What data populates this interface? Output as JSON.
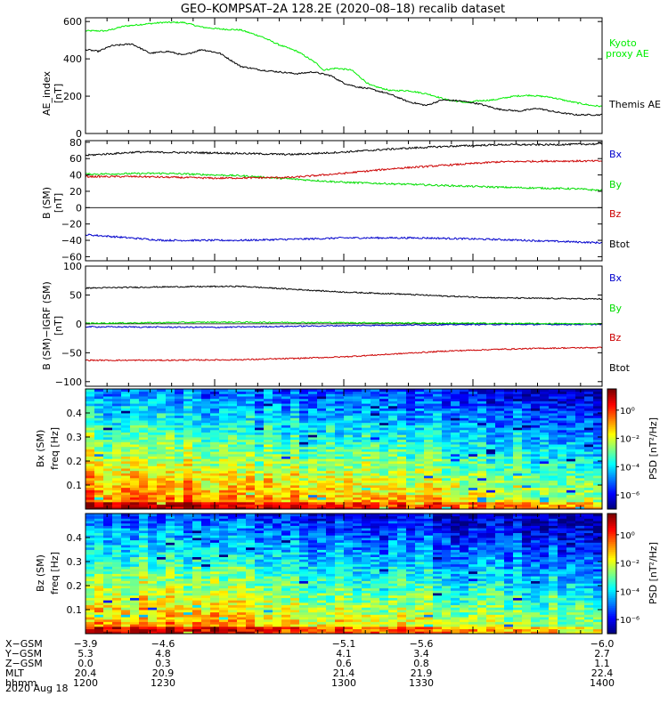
{
  "title": "GEO–KOMPSAT–2A 128.2E (2020–08–18) recalib dataset",
  "chart_data": [
    {
      "type": "line",
      "panel": "ae",
      "ylabel": "AE_index",
      "yunit": "[nT]",
      "ylim": [
        0,
        620
      ],
      "yticks": [
        "0",
        "200",
        "400",
        "600"
      ],
      "ytick_values": [
        0,
        200,
        400,
        600
      ],
      "xlim": [
        1200,
        1400
      ],
      "series": [
        {
          "name": "Kyoto proxy AE",
          "legend": [
            "Kyoto",
            "proxy AE"
          ],
          "color": "#00ee00",
          "x": [
            1200,
            1208,
            1215,
            1222,
            1230,
            1238,
            1245,
            1252,
            1260,
            1268,
            1275,
            1282,
            1285,
            1290,
            1292,
            1297,
            1303,
            1310,
            1318,
            1325,
            1333,
            1340,
            1348,
            1352,
            1358,
            1366,
            1372,
            1380,
            1388,
            1396,
            1400
          ],
          "values": [
            550,
            550,
            575,
            585,
            595,
            595,
            570,
            560,
            555,
            520,
            475,
            440,
            415,
            370,
            340,
            350,
            340,
            260,
            230,
            230,
            210,
            180,
            165,
            175,
            180,
            200,
            205,
            195,
            170,
            150,
            145
          ]
        },
        {
          "name": "Themis AE",
          "legend": [
            "Themis AE"
          ],
          "color": "#000000",
          "x": [
            1200,
            1205,
            1210,
            1218,
            1225,
            1232,
            1238,
            1245,
            1252,
            1260,
            1268,
            1275,
            1282,
            1288,
            1295,
            1300,
            1305,
            1310,
            1318,
            1325,
            1332,
            1338,
            1345,
            1352,
            1360,
            1368,
            1375,
            1382,
            1390,
            1400
          ],
          "values": [
            450,
            440,
            470,
            480,
            430,
            440,
            420,
            450,
            430,
            360,
            340,
            330,
            320,
            330,
            310,
            270,
            250,
            240,
            210,
            170,
            150,
            180,
            175,
            160,
            130,
            120,
            135,
            115,
            100,
            100
          ]
        }
      ]
    },
    {
      "type": "line",
      "panel": "b_sm",
      "ylabel": "B (SM)",
      "yunit": "[nT]",
      "ylim": [
        -65,
        82
      ],
      "yticks": [
        "−60",
        "−40",
        "−20",
        "0",
        "20",
        "40",
        "60",
        "80"
      ],
      "ytick_values": [
        -60,
        -40,
        -20,
        0,
        20,
        40,
        60,
        80
      ],
      "xlim": [
        1200,
        1400
      ],
      "series": [
        {
          "name": "Bx",
          "color": "#0000cc",
          "x": [
            1200,
            1230,
            1260,
            1290,
            1300,
            1330,
            1360,
            1390,
            1400
          ],
          "values": [
            -33,
            -40,
            -40,
            -38,
            -37,
            -37,
            -39,
            -42,
            -43
          ]
        },
        {
          "name": "By",
          "color": "#00dd00",
          "x": [
            1200,
            1230,
            1260,
            1280,
            1300,
            1330,
            1360,
            1390,
            1400
          ],
          "values": [
            41,
            42,
            39,
            35,
            31,
            28,
            25,
            23,
            21
          ]
        },
        {
          "name": "Bz",
          "color": "#cc0000",
          "x": [
            1200,
            1220,
            1250,
            1280,
            1300,
            1320,
            1340,
            1360,
            1380,
            1400
          ],
          "values": [
            38,
            38,
            36,
            37,
            42,
            48,
            52,
            56,
            57,
            57
          ]
        },
        {
          "name": "Btot",
          "color": "#000000",
          "x": [
            1200,
            1220,
            1250,
            1280,
            1300,
            1320,
            1340,
            1360,
            1380,
            1400
          ],
          "values": [
            64,
            68,
            67,
            65,
            68,
            72,
            75,
            77,
            77,
            78
          ]
        }
      ]
    },
    {
      "type": "line",
      "panel": "b_minus_igrf",
      "ylabel": "B (SM)−IGRF (SM)",
      "yunit": "[nT]",
      "ylim": [
        -108,
        100
      ],
      "yticks": [
        "−100",
        "−50",
        "0",
        "50",
        "100"
      ],
      "ytick_values": [
        -100,
        -50,
        0,
        50,
        100
      ],
      "xlim": [
        1200,
        1400
      ],
      "series": [
        {
          "name": "Bx",
          "color": "#0000cc",
          "x": [
            1200,
            1250,
            1300,
            1350,
            1400
          ],
          "values": [
            -5,
            -6,
            -3,
            -1,
            -1
          ]
        },
        {
          "name": "By",
          "color": "#00dd00",
          "x": [
            1200,
            1250,
            1300,
            1350,
            1400
          ],
          "values": [
            1,
            3,
            2,
            1,
            0
          ]
        },
        {
          "name": "Bz",
          "color": "#cc0000",
          "x": [
            1200,
            1230,
            1260,
            1280,
            1300,
            1320,
            1340,
            1360,
            1380,
            1400
          ],
          "values": [
            -63,
            -63,
            -62,
            -60,
            -57,
            -52,
            -47,
            -44,
            -42,
            -41
          ]
        },
        {
          "name": "Btot",
          "color": "#000000",
          "x": [
            1200,
            1230,
            1260,
            1280,
            1300,
            1320,
            1340,
            1360,
            1380,
            1400
          ],
          "values": [
            62,
            64,
            65,
            60,
            55,
            52,
            48,
            45,
            44,
            43
          ]
        }
      ],
      "legend": [
        "Bx",
        "By",
        "Bz",
        "Btot"
      ]
    },
    {
      "type": "heatmap",
      "panel": "bx_spectrogram",
      "ylabel": "Bx (SM)",
      "ylabel2": "freq [Hz]",
      "ylim": [
        0,
        0.5
      ],
      "yticks": [
        "0.1",
        "0.2",
        "0.3",
        "0.4"
      ],
      "ytick_values": [
        0.1,
        0.2,
        0.3,
        0.4
      ],
      "xlim": [
        1200,
        1400
      ],
      "colorbar_label": "PSD [nT²/Hz]",
      "colorbar_ticks": [
        "10⁰",
        "10⁻²",
        "10⁻⁴",
        "10⁻⁶"
      ],
      "colorbar_exponents": [
        0,
        -2,
        -4,
        -6
      ],
      "log_psd_range": [
        -7,
        1.5
      ]
    },
    {
      "type": "heatmap",
      "panel": "bz_spectrogram",
      "ylabel": "Bz (SM)",
      "ylabel2": "freq [Hz]",
      "ylim": [
        0,
        0.5
      ],
      "yticks": [
        "0.1",
        "0.2",
        "0.3",
        "0.4"
      ],
      "ytick_values": [
        0.1,
        0.2,
        0.3,
        0.4
      ],
      "xlim": [
        1200,
        1400
      ],
      "colorbar_label": "PSD [nT²/Hz]",
      "colorbar_ticks": [
        "10⁰",
        "10⁻²",
        "10⁻⁴",
        "10⁻⁶"
      ],
      "colorbar_exponents": [
        0,
        -2,
        -4,
        -6
      ],
      "log_psd_range": [
        -7,
        1.5
      ]
    }
  ],
  "xaxis_table": {
    "row_labels": [
      "X−GSM",
      "Y−GSM",
      "Z−GSM",
      "MLT",
      "hhmm"
    ],
    "tick_times": [
      1200,
      1230,
      1300,
      1330,
      1400
    ],
    "columns": [
      [
        "−3.9",
        "5.3",
        "0.0",
        "20.4",
        "1200"
      ],
      [
        "−4.6",
        "4.8",
        "0.3",
        "20.9",
        "1230"
      ],
      [
        "−5.1",
        "4.1",
        "0.6",
        "21.4",
        "1300"
      ],
      [
        "−5.6",
        "3.4",
        "0.8",
        "21.9",
        "1330"
      ],
      [
        "−6.0",
        "2.7",
        "1.1",
        "22.4",
        "1400"
      ]
    ],
    "date": "2020 Aug 18"
  }
}
